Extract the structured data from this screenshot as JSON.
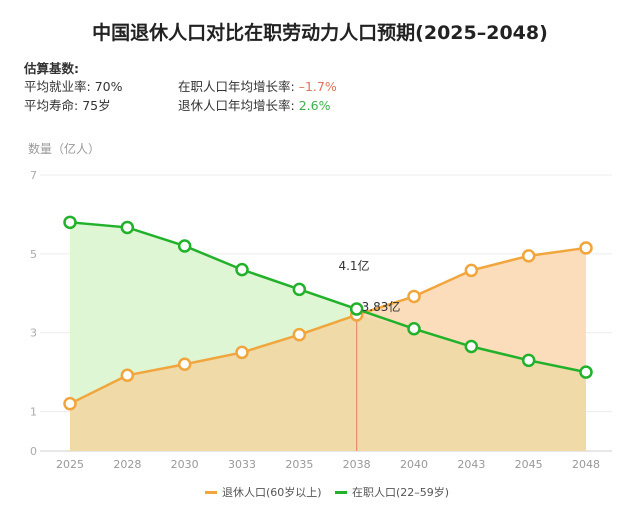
{
  "title": "中国退休人口对比在职劳动力人口预期(2025–2048)",
  "basis": {
    "heading": "估算基数:",
    "employment_label": "平均就业率:",
    "employment_value": "70%",
    "life_label": "平均寿命:",
    "life_value": "75岁",
    "work_growth_label": "在职人口年均增长率:",
    "work_growth_value": "–1.7%",
    "ret_growth_label": "退休人口年均增长率:",
    "ret_growth_value": "2.6%"
  },
  "colors": {
    "retired": "#f0a63c",
    "working": "#22b12a",
    "retired_fill": "#fcd9b4",
    "working_fill": "#dcf5cf",
    "overlap_fill": "#eed9a6",
    "marker_line": "#e98b6b"
  },
  "chart_data": {
    "type": "area",
    "ylabel": "数量（亿人）",
    "ylim": [
      0,
      7
    ],
    "yticks": [
      "0",
      "1",
      "3",
      "5",
      "7"
    ],
    "x": [
      "2025",
      "2028",
      "2030",
      "3033",
      "2035",
      "2038",
      "2040",
      "2043",
      "2045",
      "2048"
    ],
    "series": [
      {
        "name": "退休人口(60岁以上)",
        "values": [
          1.2,
          1.92,
          2.2,
          2.5,
          2.95,
          3.45,
          3.92,
          4.58,
          4.95,
          5.15
        ]
      },
      {
        "name": "在职人口(22–59岁)",
        "values": [
          5.8,
          5.67,
          5.2,
          4.6,
          4.1,
          3.6,
          3.1,
          2.65,
          2.3,
          2.0
        ]
      }
    ],
    "annotations": [
      "4.1亿",
      "3.83亿"
    ],
    "marker_x": "2038",
    "grid": true,
    "legend": "bottom"
  }
}
